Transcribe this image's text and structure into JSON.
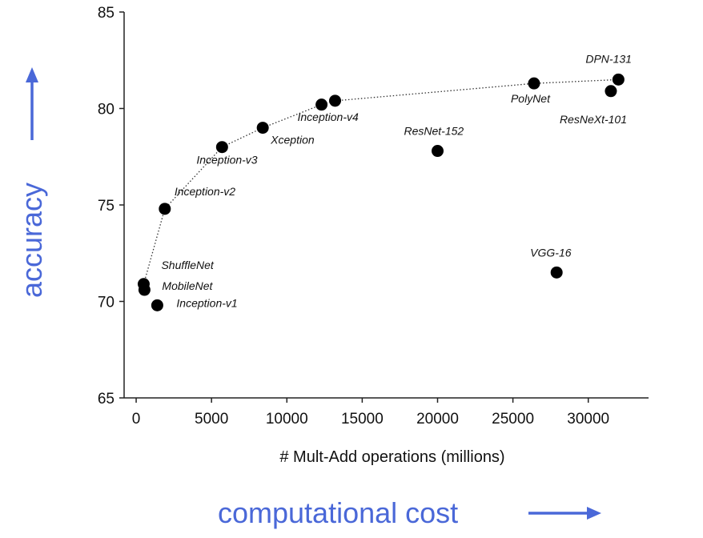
{
  "accent_color": "#4a68d8",
  "y_caption": "accuracy",
  "x_caption": "computational cost",
  "chart_data": {
    "type": "scatter",
    "xlabel": "# Mult-Add operations (millions)",
    "ylabel": "",
    "xlim": [
      -800,
      34000
    ],
    "ylim": [
      65,
      85
    ],
    "xticks": [
      0,
      5000,
      10000,
      15000,
      20000,
      25000,
      30000
    ],
    "yticks": [
      65,
      70,
      75,
      80,
      85
    ],
    "points": [
      {
        "label": "ShuffleNet",
        "x": 500,
        "y": 70.9
      },
      {
        "label": "MobileNet",
        "x": 550,
        "y": 70.6
      },
      {
        "label": "Inception-v1",
        "x": 1400,
        "y": 69.8
      },
      {
        "label": "Inception-v2",
        "x": 1900,
        "y": 74.8
      },
      {
        "label": "Inception-v3",
        "x": 5700,
        "y": 78.0
      },
      {
        "label": "Xception",
        "x": 8400,
        "y": 79.0
      },
      {
        "label": "",
        "x": 12300,
        "y": 80.2
      },
      {
        "label": "Inception-v4",
        "x": 13200,
        "y": 80.4
      },
      {
        "label": "ResNet-152",
        "x": 20000,
        "y": 77.8
      },
      {
        "label": "PolyNet",
        "x": 26400,
        "y": 81.3
      },
      {
        "label": "VGG-16",
        "x": 27900,
        "y": 71.5
      },
      {
        "label": "ResNeXt-101",
        "x": 31500,
        "y": 80.9
      },
      {
        "label": "DPN-131",
        "x": 32000,
        "y": 81.5
      }
    ],
    "frontier": [
      [
        500,
        70.9
      ],
      [
        1900,
        74.8
      ],
      [
        5700,
        78.0
      ],
      [
        8400,
        79.0
      ],
      [
        12300,
        80.2
      ],
      [
        13200,
        80.4
      ],
      [
        26400,
        81.3
      ],
      [
        32000,
        81.5
      ]
    ]
  }
}
